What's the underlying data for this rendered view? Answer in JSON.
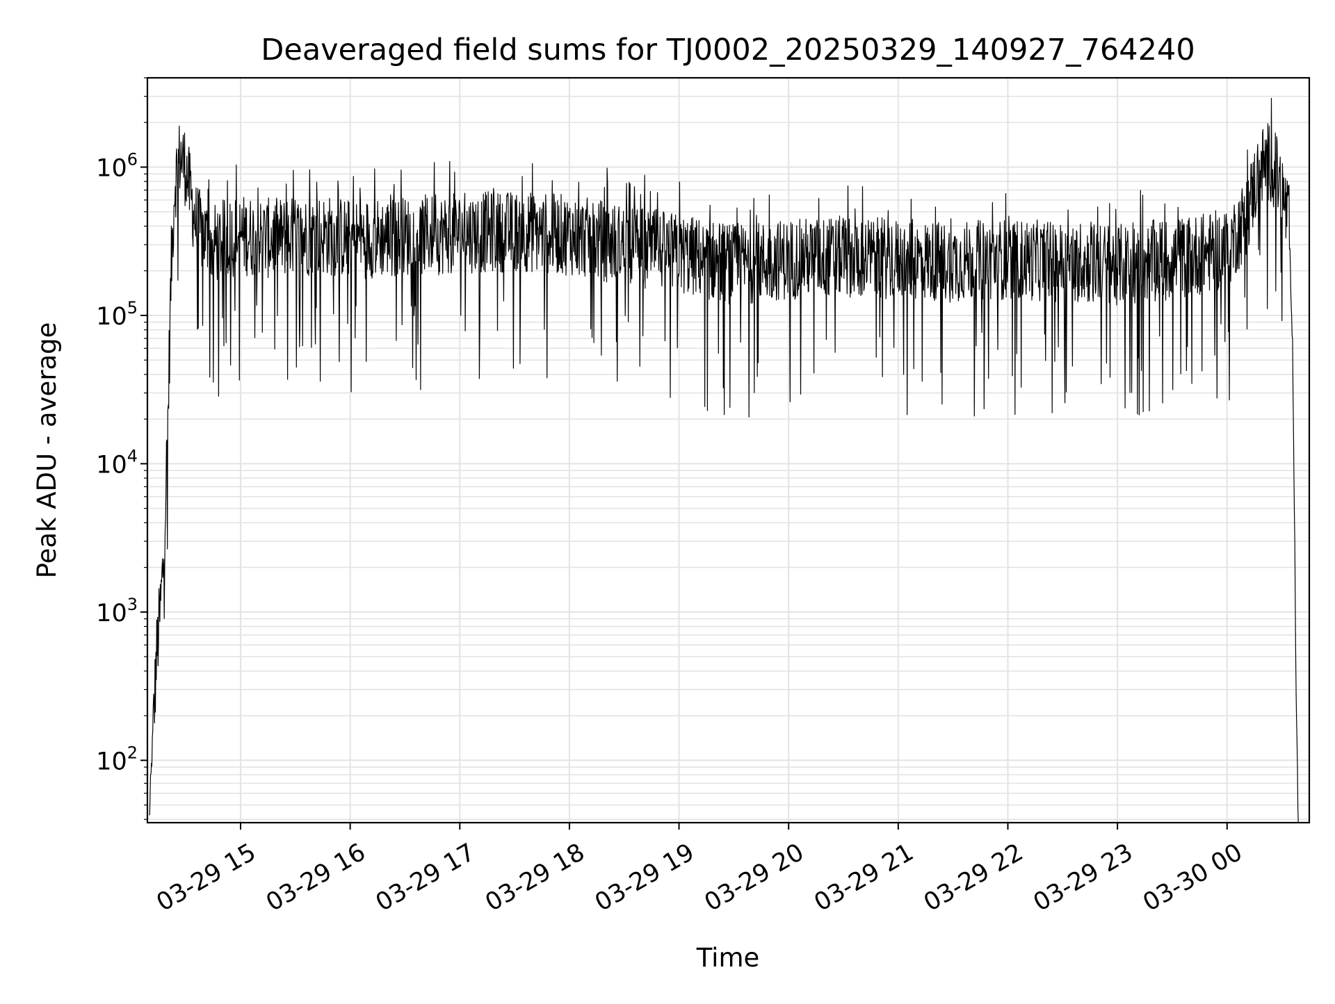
{
  "chart_data": {
    "type": "line",
    "title": "Deaveraged field sums for TJ0002_20250329_140927_764240",
    "xlabel": "Time",
    "ylabel": "Peak ADU - average",
    "yscale": "log",
    "ylim": [
      38,
      4000000
    ],
    "xlim": [
      "03-29 14:09",
      "03-30 00:45"
    ],
    "grid": true,
    "grid_minor": true,
    "line_color": "#000000",
    "grid_color": "#e3e3e3",
    "x_ticks": [
      {
        "value": "03-29 15:00",
        "label": "03-29 15"
      },
      {
        "value": "03-29 16:00",
        "label": "03-29 16"
      },
      {
        "value": "03-29 17:00",
        "label": "03-29 17"
      },
      {
        "value": "03-29 18:00",
        "label": "03-29 18"
      },
      {
        "value": "03-29 19:00",
        "label": "03-29 19"
      },
      {
        "value": "03-29 20:00",
        "label": "03-29 20"
      },
      {
        "value": "03-29 21:00",
        "label": "03-29 21"
      },
      {
        "value": "03-29 22:00",
        "label": "03-29 22"
      },
      {
        "value": "03-29 23:00",
        "label": "03-29 23"
      },
      {
        "value": "03-30 00:00",
        "label": "03-30 00"
      }
    ],
    "y_ticks": [
      {
        "value": 100,
        "base": "10",
        "exp": "2"
      },
      {
        "value": 1000,
        "base": "10",
        "exp": "3"
      },
      {
        "value": 10000,
        "base": "10",
        "exp": "4"
      },
      {
        "value": 100000,
        "base": "10",
        "exp": "5"
      },
      {
        "value": 1000000,
        "base": "10",
        "exp": "6"
      }
    ],
    "series": [
      {
        "x": [
          "03-29 14:10",
          "03-29 14:12",
          "03-29 14:14",
          "03-29 14:16",
          "03-29 14:18",
          "03-29 14:20",
          "03-29 14:22",
          "03-29 14:24",
          "03-29 14:27",
          "03-29 14:30",
          "03-29 14:33",
          "03-29 14:36",
          "03-29 14:40",
          "03-29 14:45",
          "03-29 14:50",
          "03-29 15:00",
          "03-29 15:15",
          "03-29 15:30",
          "03-29 15:45",
          "03-29 16:00",
          "03-29 16:30",
          "03-29 17:00",
          "03-29 17:30",
          "03-29 18:00",
          "03-29 18:30",
          "03-29 19:00",
          "03-29 19:30",
          "03-29 20:00",
          "03-29 20:30",
          "03-29 21:00",
          "03-29 21:30",
          "03-29 22:00",
          "03-29 22:30",
          "03-29 23:00",
          "03-29 23:30",
          "03-30 00:00",
          "03-30 00:10",
          "03-30 00:18",
          "03-30 00:24",
          "03-30 00:30",
          "03-30 00:34",
          "03-30 00:36",
          "03-30 00:38",
          "03-30 00:39"
        ],
        "y": [
          40,
          150,
          500,
          1000,
          2500,
          15000,
          200000,
          800000,
          1200000,
          1000000,
          600000,
          400000,
          350000,
          300000,
          320000,
          350000,
          330000,
          340000,
          350000,
          330000,
          340000,
          360000,
          370000,
          350000,
          300000,
          260000,
          220000,
          240000,
          250000,
          240000,
          230000,
          240000,
          230000,
          220000,
          240000,
          280000,
          450000,
          1000000,
          1100000,
          700000,
          400000,
          50000,
          170,
          40
        ]
      }
    ]
  }
}
